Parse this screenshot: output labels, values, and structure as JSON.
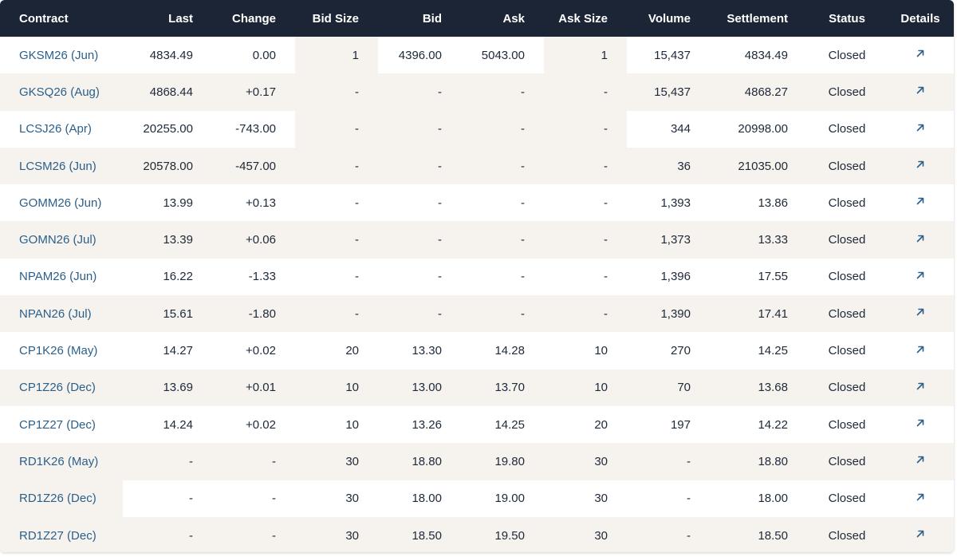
{
  "columns": {
    "contract": "Contract",
    "last": "Last",
    "change": "Change",
    "bid_size": "Bid Size",
    "bid": "Bid",
    "ask": "Ask",
    "ask_size": "Ask Size",
    "volume": "Volume",
    "settlement": "Settlement",
    "status": "Status",
    "details": "Details"
  },
  "icons": {
    "details": "arrow-up-right-icon"
  },
  "colors": {
    "header_bg": "#1c2535",
    "link": "#2b5f8a",
    "row_alt": "#f6f3ef"
  },
  "rows": [
    {
      "contract": "GKSM26 (Jun)",
      "last": "4834.49",
      "change": "0.00",
      "bid_size": "1",
      "bid": "4396.00",
      "ask": "5043.00",
      "ask_size": "1",
      "volume": "15,437",
      "settlement": "4834.49",
      "status": "Closed"
    },
    {
      "contract": "GKSQ26 (Aug)",
      "last": "4868.44",
      "change": "+0.17",
      "bid_size": "-",
      "bid": "-",
      "ask": "-",
      "ask_size": "-",
      "volume": "15,437",
      "settlement": "4868.27",
      "status": "Closed"
    },
    {
      "contract": "LCSJ26 (Apr)",
      "last": "20255.00",
      "change": "-743.00",
      "bid_size": "-",
      "bid": "-",
      "ask": "-",
      "ask_size": "-",
      "volume": "344",
      "settlement": "20998.00",
      "status": "Closed"
    },
    {
      "contract": "LCSM26 (Jun)",
      "last": "20578.00",
      "change": "-457.00",
      "bid_size": "-",
      "bid": "-",
      "ask": "-",
      "ask_size": "-",
      "volume": "36",
      "settlement": "21035.00",
      "status": "Closed"
    },
    {
      "contract": "GOMM26 (Jun)",
      "last": "13.99",
      "change": "+0.13",
      "bid_size": "-",
      "bid": "-",
      "ask": "-",
      "ask_size": "-",
      "volume": "1,393",
      "settlement": "13.86",
      "status": "Closed"
    },
    {
      "contract": "GOMN26 (Jul)",
      "last": "13.39",
      "change": "+0.06",
      "bid_size": "-",
      "bid": "-",
      "ask": "-",
      "ask_size": "-",
      "volume": "1,373",
      "settlement": "13.33",
      "status": "Closed"
    },
    {
      "contract": "NPAM26 (Jun)",
      "last": "16.22",
      "change": "-1.33",
      "bid_size": "-",
      "bid": "-",
      "ask": "-",
      "ask_size": "-",
      "volume": "1,396",
      "settlement": "17.55",
      "status": "Closed"
    },
    {
      "contract": "NPAN26 (Jul)",
      "last": "15.61",
      "change": "-1.80",
      "bid_size": "-",
      "bid": "-",
      "ask": "-",
      "ask_size": "-",
      "volume": "1,390",
      "settlement": "17.41",
      "status": "Closed"
    },
    {
      "contract": "CP1K26 (May)",
      "last": "14.27",
      "change": "+0.02",
      "bid_size": "20",
      "bid": "13.30",
      "ask": "14.28",
      "ask_size": "10",
      "volume": "270",
      "settlement": "14.25",
      "status": "Closed"
    },
    {
      "contract": "CP1Z26 (Dec)",
      "last": "13.69",
      "change": "+0.01",
      "bid_size": "10",
      "bid": "13.00",
      "ask": "13.70",
      "ask_size": "10",
      "volume": "70",
      "settlement": "13.68",
      "status": "Closed"
    },
    {
      "contract": "CP1Z27 (Dec)",
      "last": "14.24",
      "change": "+0.02",
      "bid_size": "10",
      "bid": "13.26",
      "ask": "14.25",
      "ask_size": "20",
      "volume": "197",
      "settlement": "14.22",
      "status": "Closed"
    },
    {
      "contract": "RD1K26 (May)",
      "last": "-",
      "change": "-",
      "bid_size": "30",
      "bid": "18.80",
      "ask": "19.80",
      "ask_size": "30",
      "volume": "-",
      "settlement": "18.80",
      "status": "Closed"
    },
    {
      "contract": "RD1Z26 (Dec)",
      "last": "-",
      "change": "-",
      "bid_size": "30",
      "bid": "18.00",
      "ask": "19.00",
      "ask_size": "30",
      "volume": "-",
      "settlement": "18.00",
      "status": "Closed"
    },
    {
      "contract": "RD1Z27 (Dec)",
      "last": "-",
      "change": "-",
      "bid_size": "30",
      "bid": "18.50",
      "ask": "19.50",
      "ask_size": "30",
      "volume": "-",
      "settlement": "18.50",
      "status": "Closed"
    }
  ]
}
